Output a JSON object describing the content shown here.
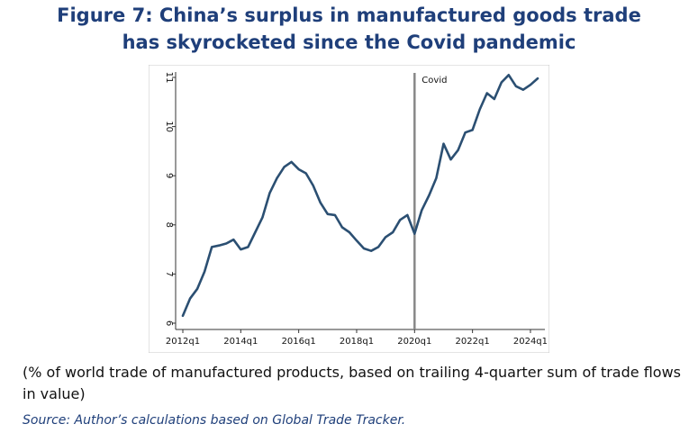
{
  "figure": {
    "title_line1": "Figure 7: China’s surplus in manufactured goods trade",
    "title_line2": "has skyrocketed since the Covid pandemic",
    "caption": "(% of world trade of manufactured products, based on trailing 4-quarter sum of trade flows in value)",
    "source": "Source: Author’s calculations based on Global Trade Tracker."
  },
  "chart_data": {
    "type": "line",
    "title": "",
    "xlabel": "",
    "ylabel": "",
    "ylim": [
      6,
      11
    ],
    "x_ticks": [
      "2012q1",
      "2014q1",
      "2016q1",
      "2018q1",
      "2020q1",
      "2022q1",
      "2024q1"
    ],
    "y_ticks": [
      "6",
      "7",
      "8",
      "9",
      "10",
      "11"
    ],
    "grid": false,
    "line_color": "#2b4f72",
    "annotation": {
      "label": "Covid",
      "x": "2020q1",
      "color": "#888888"
    },
    "series": [
      {
        "x": [
          "2012q1",
          "2012q2",
          "2012q3",
          "2012q4",
          "2013q1",
          "2013q2",
          "2013q3",
          "2013q4",
          "2014q1",
          "2014q2",
          "2014q3",
          "2014q4",
          "2015q1",
          "2015q2",
          "2015q3",
          "2015q4",
          "2016q1",
          "2016q2",
          "2016q3",
          "2016q4",
          "2017q1",
          "2017q2",
          "2017q3",
          "2017q4",
          "2018q1",
          "2018q2",
          "2018q3",
          "2018q4",
          "2019q1",
          "2019q2",
          "2019q3",
          "2019q4",
          "2020q1",
          "2020q2",
          "2020q3",
          "2020q4",
          "2021q1",
          "2021q2",
          "2021q3",
          "2021q4",
          "2022q1",
          "2022q2",
          "2022q3",
          "2022q4",
          "2023q1",
          "2023q2",
          "2023q3",
          "2023q4",
          "2024q1",
          "2024q2"
        ],
        "values": [
          6.15,
          6.5,
          6.7,
          7.05,
          7.55,
          7.58,
          7.62,
          7.7,
          7.5,
          7.55,
          7.85,
          8.15,
          8.65,
          8.95,
          9.18,
          9.28,
          9.13,
          9.05,
          8.8,
          8.45,
          8.22,
          8.2,
          7.95,
          7.85,
          7.68,
          7.52,
          7.47,
          7.55,
          7.75,
          7.85,
          8.1,
          8.2,
          7.82,
          8.3,
          8.6,
          8.95,
          9.65,
          9.33,
          9.52,
          9.88,
          9.93,
          10.35,
          10.68,
          10.56,
          10.9,
          11.05,
          10.82,
          10.75,
          10.85,
          10.98
        ]
      }
    ]
  }
}
